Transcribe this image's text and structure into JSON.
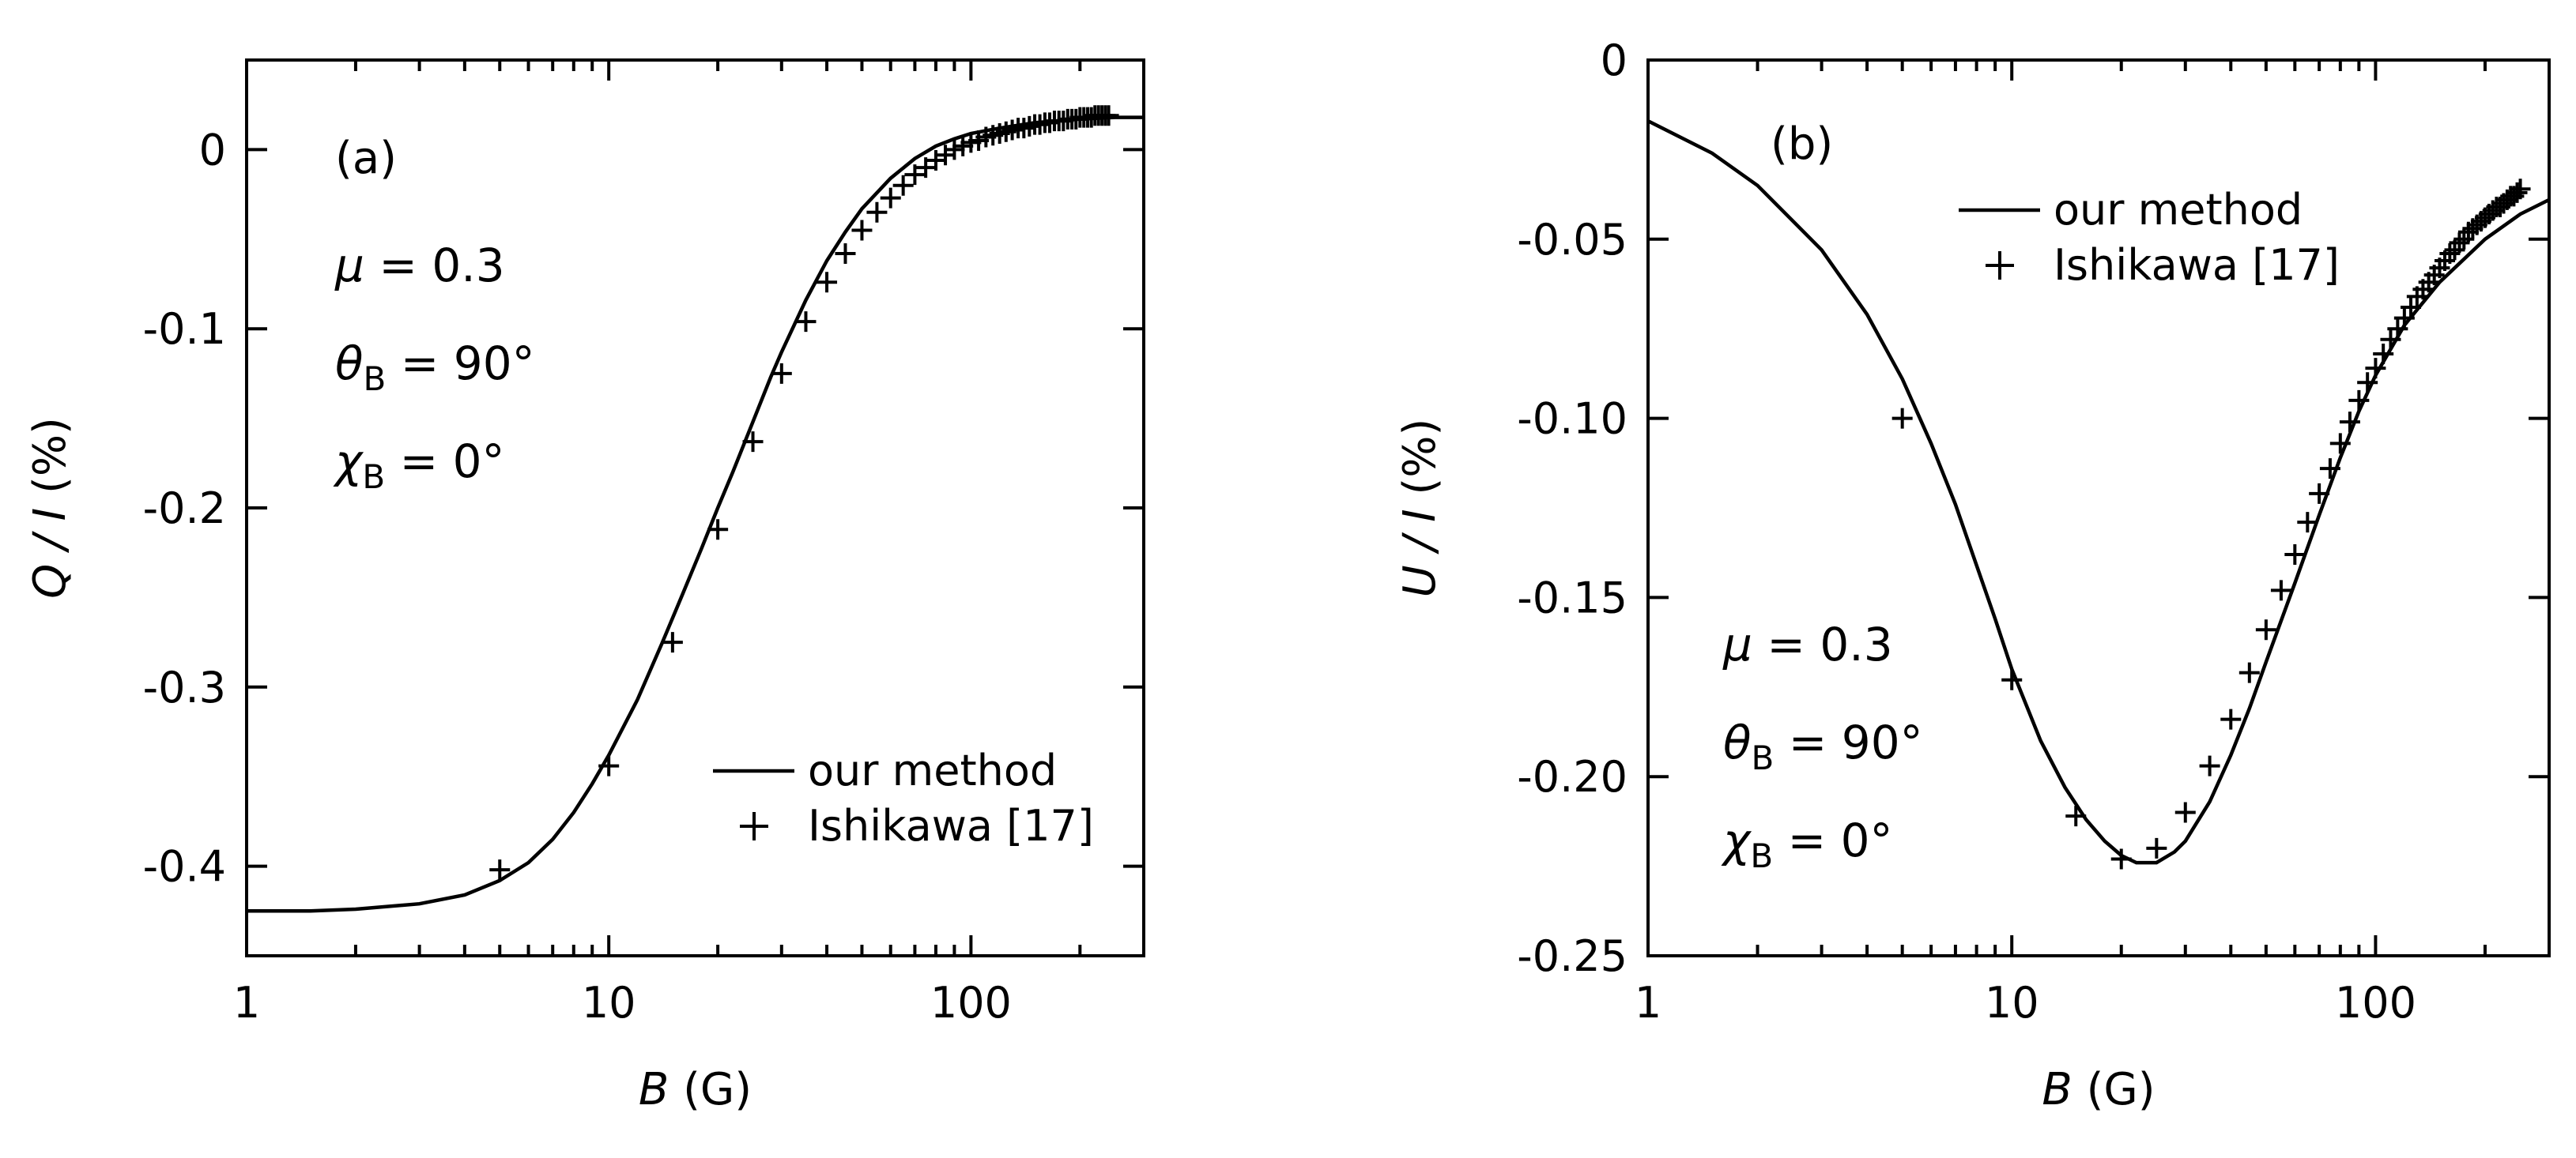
{
  "chart_data": [
    {
      "type": "line",
      "panel_label": "(a)",
      "xlabel": "B",
      "xlabel_unit": " (G)",
      "ylabel": "Q / I",
      "ylabel_unit": " (%)",
      "xscale": "log",
      "xlim": [
        1,
        300
      ],
      "ylim": [
        -0.45,
        0.05
      ],
      "x_ticks": [
        1,
        10,
        100
      ],
      "x_tick_labels": [
        "1",
        "10",
        "100"
      ],
      "y_ticks": [
        0,
        -0.1,
        -0.2,
        -0.3,
        -0.4
      ],
      "y_tick_labels": [
        "0",
        "-0.1",
        "-0.2",
        "-0.3",
        "-0.4"
      ],
      "params": [
        {
          "sym": "μ",
          "sub": "",
          "text": " = 0.3"
        },
        {
          "sym": "θ",
          "sub": "B",
          "text": " = 90°"
        },
        {
          "sym": "χ",
          "sub": "B",
          "text": " = 0°"
        }
      ],
      "legend_position": "bottom-right",
      "series": [
        {
          "name": "our method",
          "style": "line",
          "x": [
            1,
            1.5,
            2,
            3,
            4,
            5,
            6,
            7,
            8,
            9,
            10,
            12,
            14,
            16,
            18,
            20,
            22,
            25,
            28,
            30,
            35,
            40,
            45,
            50,
            60,
            70,
            80,
            90,
            100,
            120,
            150,
            200,
            250,
            300
          ],
          "y": [
            -0.425,
            -0.425,
            -0.424,
            -0.421,
            -0.416,
            -0.408,
            -0.398,
            -0.385,
            -0.37,
            -0.354,
            -0.338,
            -0.307,
            -0.276,
            -0.248,
            -0.223,
            -0.2,
            -0.18,
            -0.152,
            -0.127,
            -0.113,
            -0.084,
            -0.062,
            -0.046,
            -0.033,
            -0.016,
            -0.005,
            0.002,
            0.006,
            0.009,
            0.012,
            0.015,
            0.017,
            0.018,
            0.018
          ]
        },
        {
          "name": "Ishikawa [17]",
          "style": "plus",
          "x": [
            5,
            10,
            15,
            20,
            25,
            30,
            35,
            40,
            45,
            50,
            55,
            60,
            65,
            70,
            75,
            80,
            85,
            90,
            95,
            100,
            105,
            110,
            115,
            120,
            125,
            130,
            135,
            140,
            145,
            150,
            155,
            160,
            165,
            170,
            175,
            180,
            185,
            190,
            195,
            200,
            205,
            210,
            215,
            220,
            225,
            230,
            235,
            240
          ],
          "y": [
            -0.402,
            -0.344,
            -0.275,
            -0.212,
            -0.163,
            -0.125,
            -0.096,
            -0.074,
            -0.058,
            -0.045,
            -0.035,
            -0.027,
            -0.02,
            -0.014,
            -0.01,
            -0.006,
            -0.003,
            0.0,
            0.002,
            0.004,
            0.005,
            0.007,
            0.008,
            0.009,
            0.01,
            0.011,
            0.012,
            0.012,
            0.013,
            0.014,
            0.014,
            0.015,
            0.015,
            0.016,
            0.016,
            0.016,
            0.017,
            0.017,
            0.017,
            0.018,
            0.018,
            0.018,
            0.018,
            0.019,
            0.019,
            0.019,
            0.019,
            0.019
          ]
        }
      ]
    },
    {
      "type": "line",
      "panel_label": "(b)",
      "xlabel": "B",
      "xlabel_unit": " (G)",
      "ylabel": "U / I",
      "ylabel_unit": " (%)",
      "xscale": "log",
      "xlim": [
        1,
        300
      ],
      "ylim": [
        -0.25,
        0
      ],
      "x_ticks": [
        1,
        10,
        100
      ],
      "x_tick_labels": [
        "1",
        "10",
        "100"
      ],
      "y_ticks": [
        0,
        -0.05,
        -0.1,
        -0.15,
        -0.2,
        -0.25
      ],
      "y_tick_labels": [
        "0",
        "-0.05",
        "-0.10",
        "-0.15",
        "-0.20",
        "-0.25"
      ],
      "params": [
        {
          "sym": "μ",
          "sub": "",
          "text": " = 0.3"
        },
        {
          "sym": "θ",
          "sub": "B",
          "text": " = 90°"
        },
        {
          "sym": "χ",
          "sub": "B",
          "text": " = 0°"
        }
      ],
      "legend_position": "top-right",
      "series": [
        {
          "name": "our method",
          "style": "line",
          "x": [
            1,
            1.5,
            2,
            3,
            4,
            5,
            6,
            7,
            8,
            9,
            10,
            12,
            14,
            16,
            18,
            20,
            22,
            25,
            28,
            30,
            35,
            40,
            45,
            50,
            60,
            70,
            80,
            90,
            100,
            120,
            150,
            200,
            250,
            300
          ],
          "y": [
            -0.017,
            -0.026,
            -0.035,
            -0.053,
            -0.071,
            -0.089,
            -0.107,
            -0.124,
            -0.141,
            -0.156,
            -0.17,
            -0.19,
            -0.203,
            -0.212,
            -0.218,
            -0.222,
            -0.224,
            -0.224,
            -0.221,
            -0.218,
            -0.207,
            -0.194,
            -0.181,
            -0.168,
            -0.146,
            -0.127,
            -0.111,
            -0.098,
            -0.088,
            -0.074,
            -0.062,
            -0.05,
            -0.043,
            -0.039
          ]
        },
        {
          "name": "Ishikawa [17]",
          "style": "plus",
          "x": [
            5,
            10,
            15,
            20,
            25,
            30,
            35,
            40,
            45,
            50,
            55,
            60,
            65,
            70,
            75,
            80,
            85,
            90,
            95,
            100,
            105,
            110,
            115,
            120,
            125,
            130,
            135,
            140,
            145,
            150,
            155,
            160,
            165,
            170,
            175,
            180,
            185,
            190,
            195,
            200,
            205,
            210,
            215,
            220,
            225,
            230,
            235,
            240,
            245,
            250
          ],
          "y": [
            -0.1,
            -0.173,
            -0.211,
            -0.223,
            -0.22,
            -0.21,
            -0.197,
            -0.184,
            -0.171,
            -0.159,
            -0.148,
            -0.138,
            -0.129,
            -0.121,
            -0.114,
            -0.107,
            -0.101,
            -0.095,
            -0.09,
            -0.086,
            -0.082,
            -0.078,
            -0.075,
            -0.072,
            -0.069,
            -0.066,
            -0.064,
            -0.062,
            -0.06,
            -0.058,
            -0.056,
            -0.054,
            -0.053,
            -0.051,
            -0.05,
            -0.048,
            -0.047,
            -0.046,
            -0.045,
            -0.044,
            -0.043,
            -0.042,
            -0.041,
            -0.041,
            -0.04,
            -0.039,
            -0.038,
            -0.038,
            -0.037,
            -0.036
          ]
        }
      ]
    }
  ]
}
